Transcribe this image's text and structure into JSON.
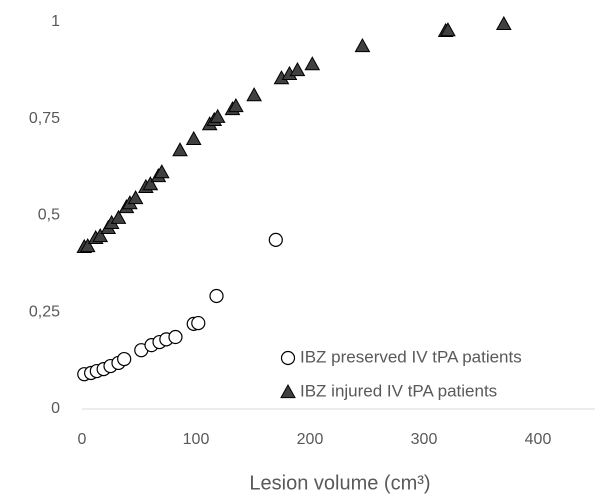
{
  "chart_data": {
    "type": "scatter",
    "x_label": "Lesion volume (cm³)",
    "xlim": [
      0,
      450
    ],
    "xticks": [
      0,
      100,
      200,
      300,
      400
    ],
    "ylim": [
      0,
      1
    ],
    "yticks": [
      0,
      {
        "value": 0.25,
        "label": "0,25"
      },
      {
        "value": 0.5,
        "label": "0,5"
      },
      {
        "value": 0.75,
        "label": "0,75"
      },
      1
    ],
    "grid": false,
    "legend": "lower right",
    "series": [
      {
        "name": "IBZ preserved IV tPA patients",
        "marker": "circle",
        "color": "#ffffff",
        "edge": "#000000",
        "x": [
          2,
          8,
          13,
          19,
          25,
          32,
          37,
          52,
          61,
          68,
          74,
          82,
          98,
          102,
          118,
          170
        ],
        "y": [
          0.09,
          0.093,
          0.098,
          0.103,
          0.111,
          0.119,
          0.129,
          0.152,
          0.165,
          0.173,
          0.18,
          0.186,
          0.22,
          0.222,
          0.292,
          0.437
        ]
      },
      {
        "name": "IBZ injured IV tPA patients",
        "marker": "triangle",
        "color": "#404040",
        "edge": "#000000",
        "x": [
          2,
          5,
          12,
          16,
          23,
          26,
          32,
          39,
          42,
          47,
          56,
          60,
          67,
          70,
          86,
          98,
          112,
          116,
          119,
          132,
          135,
          151,
          175,
          182,
          189,
          202,
          246,
          319,
          321,
          370
        ],
        "y": [
          0.419,
          0.421,
          0.442,
          0.447,
          0.468,
          0.481,
          0.494,
          0.522,
          0.532,
          0.545,
          0.574,
          0.581,
          0.602,
          0.612,
          0.669,
          0.698,
          0.736,
          0.747,
          0.755,
          0.775,
          0.783,
          0.811,
          0.855,
          0.866,
          0.876,
          0.891,
          0.938,
          0.977,
          0.979,
          0.995
        ]
      }
    ]
  }
}
